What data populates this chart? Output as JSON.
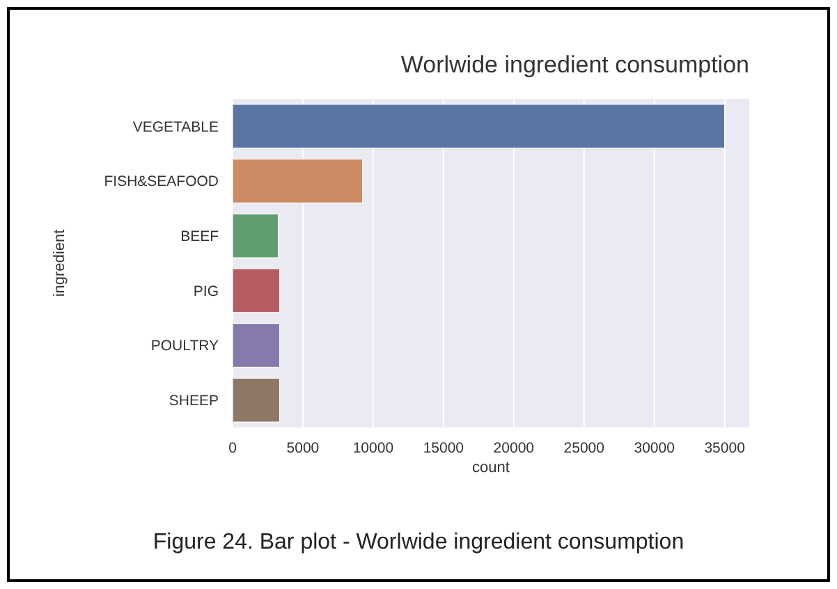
{
  "chart_data": {
    "type": "bar",
    "orientation": "horizontal",
    "title": "Worlwide ingredient consumption",
    "xlabel": "count",
    "ylabel": "ingredient",
    "categories": [
      "VEGETABLE",
      "FISH&SEAFOOD",
      "BEEF",
      "PIG",
      "POULTRY",
      "SHEEP"
    ],
    "values": [
      35000,
      9250,
      3250,
      3350,
      3350,
      3350
    ],
    "colors": [
      "#5975a4",
      "#cc8963",
      "#5f9e6e",
      "#b55d60",
      "#857aab",
      "#8d7866"
    ],
    "xlim": [
      0,
      36750
    ],
    "xticks": [
      0,
      5000,
      10000,
      15000,
      20000,
      25000,
      30000,
      35000
    ],
    "grid": "x",
    "annotations": [
      "Figure 24. Bar plot - Worlwide ingredient consumption"
    ]
  }
}
